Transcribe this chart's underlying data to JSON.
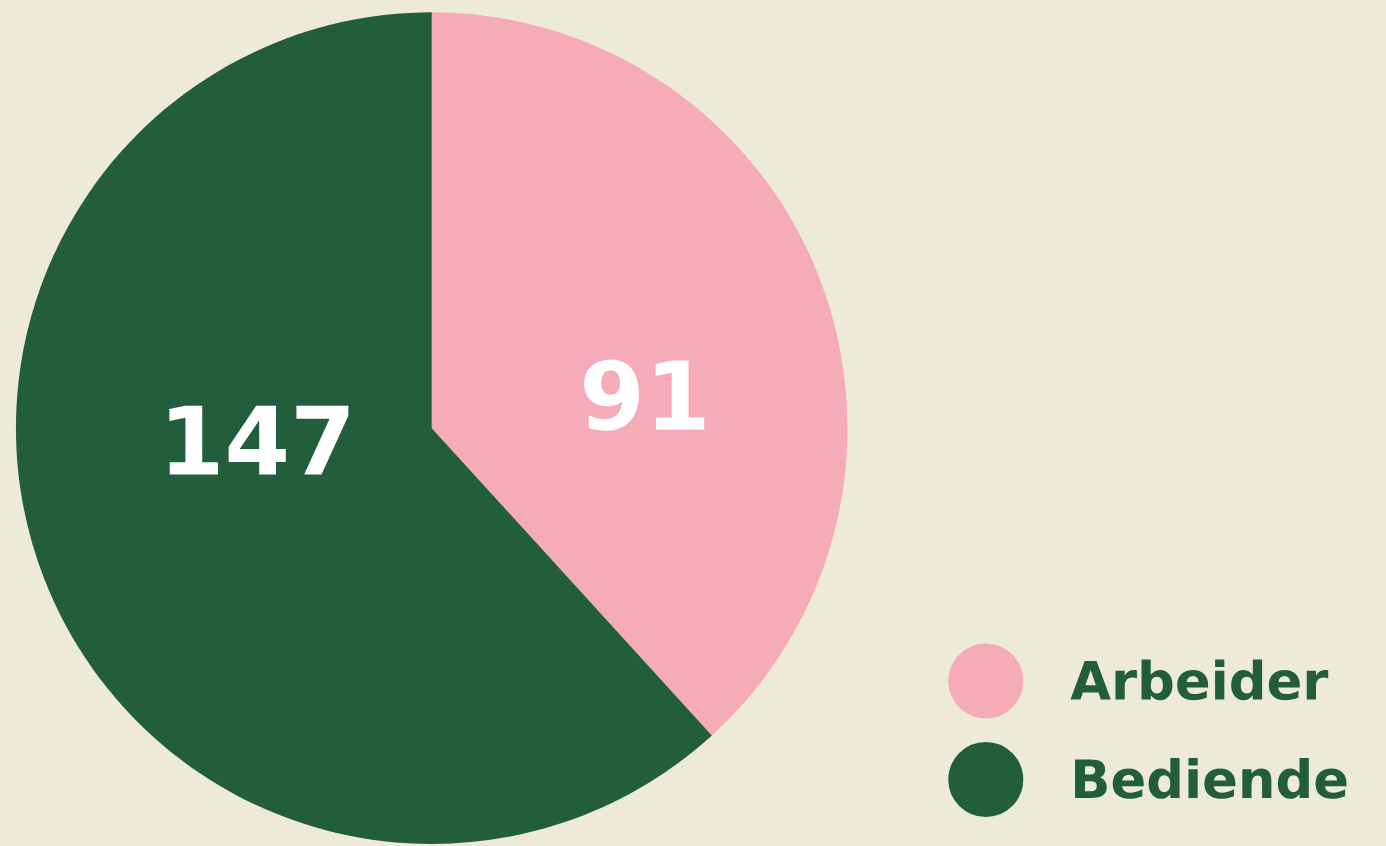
{
  "chart_data": {
    "type": "pie",
    "categories": [
      "Arbeider",
      "Bediende"
    ],
    "values": [
      91,
      147
    ],
    "colors": [
      "#f5abb8",
      "#225e3c"
    ],
    "data_labels": true,
    "legend": "bottom right"
  }
}
